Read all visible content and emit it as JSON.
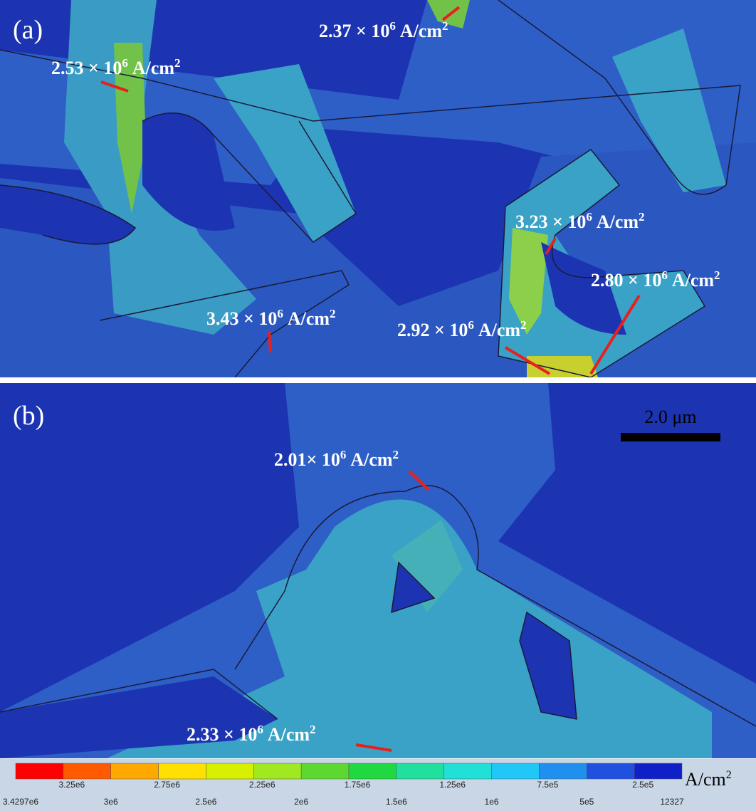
{
  "panels": {
    "a": "(a)",
    "b": "(b)"
  },
  "annotations": [
    {
      "text": "2.37 × 10",
      "exp": "6",
      "unit": "A/cm",
      "unit_exp": "2"
    },
    {
      "text": "2.53 × 10",
      "exp": "6",
      "unit": "A/cm",
      "unit_exp": "2"
    },
    {
      "text": "3.23 × 10",
      "exp": "6",
      "unit": "A/cm",
      "unit_exp": "2"
    },
    {
      "text": "2.80 × 10",
      "exp": "6",
      "unit": "A/cm",
      "unit_exp": "2"
    },
    {
      "text": "3.43 × 10",
      "exp": "6",
      "unit": "A/cm",
      "unit_exp": "2"
    },
    {
      "text": "2.92 × 10",
      "exp": "6",
      "unit": "A/cm",
      "unit_exp": "2"
    },
    {
      "text": "2.01× 10",
      "exp": "6",
      "unit": "A/cm",
      "unit_exp": "2"
    },
    {
      "text": "2.33 × 10",
      "exp": "6",
      "unit": "A/cm",
      "unit_exp": "2"
    }
  ],
  "scale_bar": "2.0 μm",
  "colorbar": {
    "colors": [
      "#ff0000",
      "#ff5a00",
      "#ffa800",
      "#ffe000",
      "#d8f000",
      "#a0e820",
      "#5cd830",
      "#20d840",
      "#20e0a0",
      "#20e0d8",
      "#20c8f8",
      "#2090f0",
      "#2050e0",
      "#1020c8"
    ],
    "upper_labels": [
      "3.25e6",
      "2.75e6",
      "2.25e6",
      "1.75e6",
      "1.25e6",
      "7.5e5",
      "2.5e5"
    ],
    "lower_labels": [
      "3.4297e6",
      "3e6",
      "2.5e6",
      "2e6",
      "1.5e6",
      "1e6",
      "5e5",
      "12327"
    ],
    "unit": "A/cm",
    "unit_exp": "2"
  }
}
